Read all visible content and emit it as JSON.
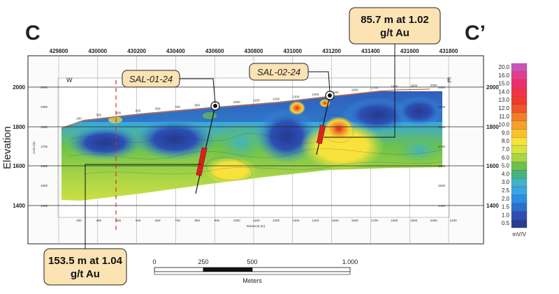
{
  "section": {
    "left_label": "C",
    "right_label": "C’"
  },
  "directions": {
    "west": "W",
    "east": "E"
  },
  "easting_ticks": [
    "429800",
    "430000",
    "430200",
    "430400",
    "430600",
    "430800",
    "431000",
    "431200",
    "431400",
    "431600",
    "431800"
  ],
  "elevation": {
    "title": "Elevation",
    "ticks": [
      "2000",
      "1800",
      "1600",
      "1400"
    ],
    "inner_ticks": [
      "2000",
      "1900",
      "1800",
      "1700",
      "1600",
      "1500",
      "1400"
    ],
    "inner_axis_label": "Cota (m)"
  },
  "distance": {
    "ticks": [
      "200",
      "300",
      "400",
      "500",
      "600",
      "700",
      "800",
      "900",
      "1000",
      "1100",
      "1200",
      "1300",
      "1400",
      "1500",
      "1600",
      "1700",
      "1800",
      "1900",
      "2000",
      "2100"
    ],
    "label": "Distancia (m)",
    "surface_ticks": [
      "200",
      "300",
      "400",
      "500",
      "600",
      "700",
      "800",
      "900",
      "1000",
      "1100",
      "1200",
      "1300",
      "1400",
      "1500",
      "1600",
      "1700",
      "1800",
      "1900",
      "2000"
    ]
  },
  "drillholes": [
    {
      "name": "SAL-01-24",
      "intercept_line1": "153.5 m at 1.04",
      "intercept_line2": "g/t Au"
    },
    {
      "name": "SAL-02-24",
      "intercept_line1": "85.7 m at 1.02",
      "intercept_line2": "g/t Au"
    }
  ],
  "scale_bar": {
    "ticks": [
      "0",
      "250",
      "500",
      "1.000"
    ],
    "unit": "Meters"
  },
  "legend": {
    "unit": "mV/V",
    "values": [
      "20.0",
      "16.0",
      "15.0",
      "14.0",
      "13.0",
      "12.0",
      "11.0",
      "10.0",
      "9.0",
      "8.0",
      "7.0",
      "6.0",
      "5.0",
      "4.0",
      "3.0",
      "2.5",
      "2.0",
      "1.5",
      "1.0",
      "0.5"
    ],
    "colors": [
      "#c855b8",
      "#e63c8c",
      "#ee2d6e",
      "#f0324a",
      "#ef3a2c",
      "#f0542a",
      "#f37e26",
      "#f6a02a",
      "#f9c22d",
      "#f7e23a",
      "#d6e340",
      "#a9d547",
      "#6cc24a",
      "#45b37e",
      "#3fb3c9",
      "#35a6e6",
      "#2b8ee4",
      "#2a6fd1",
      "#2d4fb5",
      "#283d93"
    ]
  }
}
